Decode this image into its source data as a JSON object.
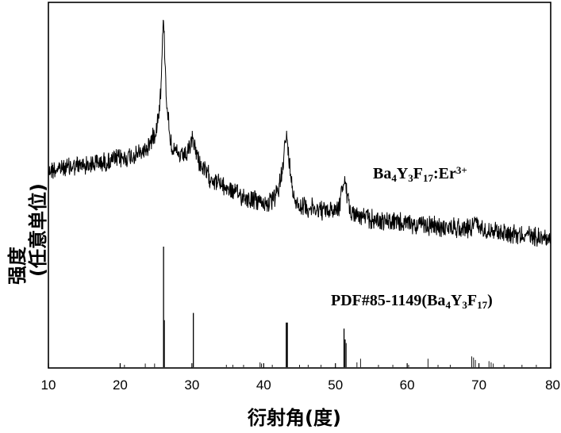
{
  "chart_data": {
    "type": "line",
    "xlabel": "衍射角(度)",
    "ylabel": "强度",
    "ylabel_sub": "(任意单位)",
    "xlim": [
      10,
      80
    ],
    "xticks": [
      10,
      20,
      30,
      40,
      50,
      60,
      70,
      80
    ],
    "y_tick_labels": false,
    "grid": false,
    "colors": {
      "trace": "#000000",
      "reference": "#000000"
    },
    "annotations": [
      {
        "target": "sample_pattern",
        "parts": [
          {
            "text": "Ba",
            "sub": false
          },
          {
            "text": "4",
            "sub": true
          },
          {
            "text": "Y",
            "sub": false
          },
          {
            "text": "3",
            "sub": true
          },
          {
            "text": "F",
            "sub": false
          },
          {
            "text": "17",
            "sub": true
          },
          {
            "text": ":Er",
            "sub": false
          },
          {
            "text": "3+",
            "sup": true
          }
        ]
      },
      {
        "target": "reference_pattern",
        "parts": [
          {
            "text": "PDF#85-1149(Ba",
            "sub": false
          },
          {
            "text": "4",
            "sub": true
          },
          {
            "text": "Y",
            "sub": false
          },
          {
            "text": "3",
            "sub": true
          },
          {
            "text": "F",
            "sub": false
          },
          {
            "text": "17",
            "sub": true
          },
          {
            "text": ")",
            "sub": false
          }
        ]
      }
    ],
    "series": [
      {
        "role": "sample_pattern",
        "style": "noisy-line",
        "noise": 11,
        "x": [
          10,
          12,
          14,
          16,
          18,
          20,
          22,
          23,
          24,
          24.5,
          25,
          25.4,
          25.7,
          25.9,
          26.05,
          26.2,
          26.4,
          26.7,
          27,
          27.5,
          28.5,
          29.5,
          30.0,
          30.2,
          30.5,
          31,
          32,
          34,
          36,
          38,
          40,
          41,
          42,
          42.5,
          43.0,
          43.2,
          43.5,
          44,
          44.5,
          45,
          47,
          49,
          50.5,
          51.0,
          51.2,
          51.5,
          52,
          53,
          55,
          60,
          65,
          69,
          69.3,
          70,
          75,
          80
        ],
        "y": [
          0.58,
          0.59,
          0.6,
          0.61,
          0.62,
          0.635,
          0.65,
          0.665,
          0.7,
          0.735,
          0.78,
          0.87,
          0.99,
          1.2,
          1.33,
          1.17,
          0.96,
          0.83,
          0.73,
          0.67,
          0.64,
          0.66,
          0.72,
          0.73,
          0.68,
          0.62,
          0.56,
          0.51,
          0.47,
          0.44,
          0.42,
          0.42,
          0.47,
          0.57,
          0.71,
          0.74,
          0.64,
          0.49,
          0.43,
          0.41,
          0.39,
          0.38,
          0.4,
          0.5,
          0.53,
          0.48,
          0.39,
          0.36,
          0.34,
          0.32,
          0.3,
          0.3,
          0.34,
          0.3,
          0.27,
          0.25
        ]
      },
      {
        "role": "reference_pattern",
        "style": "sticks",
        "x": [
          20.6,
          23.5,
          24.8,
          26.05,
          26.15,
          30.2,
          34.8,
          35.7,
          37.2,
          39.5,
          39.7,
          41.2,
          43.15,
          43.3,
          45.0,
          46.2,
          48.0,
          51.2,
          51.35,
          51.5,
          53.0,
          53.5,
          56.0,
          58.0,
          60.2,
          62.9,
          64.3,
          66.0,
          69.0,
          69.25,
          69.5,
          71.4,
          71.7,
          72.0,
          73.5,
          76.0,
          78.0
        ],
        "y": [
          2,
          3,
          3,
          100,
          39,
          45,
          2,
          2,
          2,
          4,
          3,
          2,
          37,
          37,
          2,
          2,
          2,
          32,
          23,
          20,
          4,
          7,
          2,
          2,
          2,
          7,
          2,
          2,
          9,
          8,
          6,
          5,
          4,
          3,
          2,
          2,
          2
        ]
      }
    ]
  }
}
